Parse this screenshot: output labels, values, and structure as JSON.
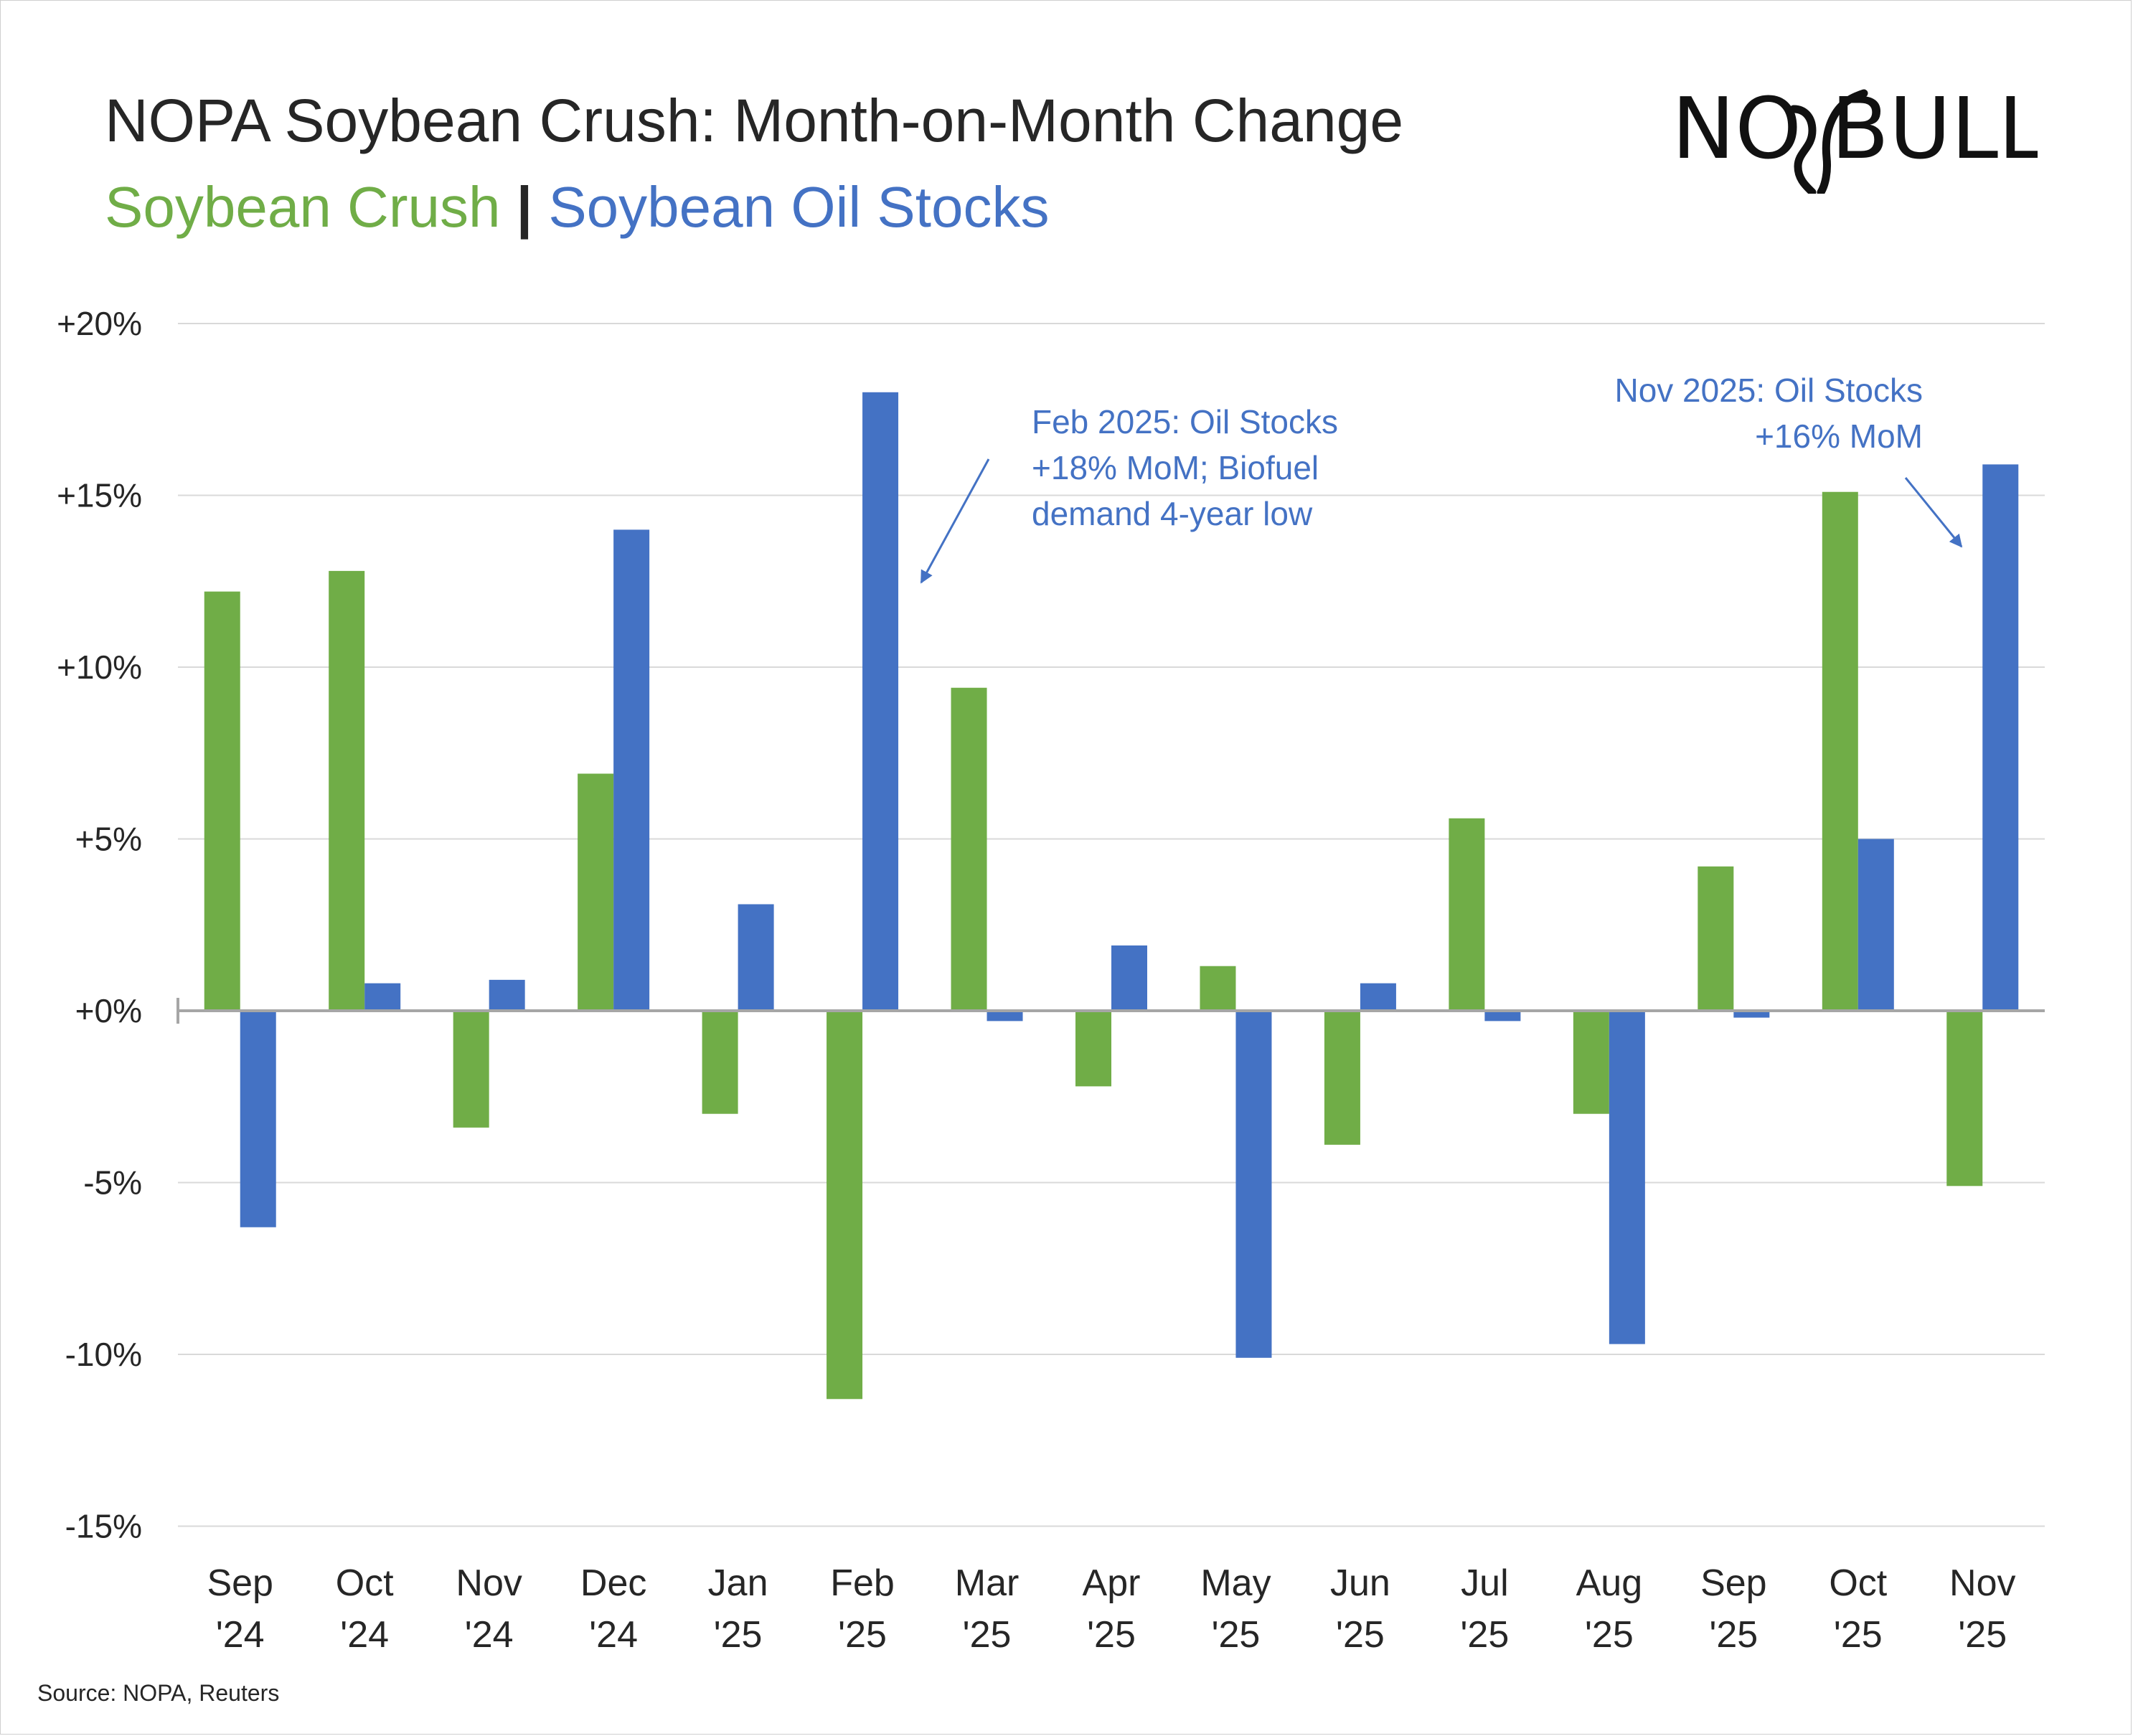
{
  "title": "NOPA Soybean Crush: Month-on-Month Change",
  "subtitle": {
    "crush": "Soybean Crush",
    "separator": "|",
    "oil": "Soybean Oil Stocks"
  },
  "logo": {
    "left": "NO",
    "right": "BULL"
  },
  "source": "Source: NOPA, Reuters",
  "colors": {
    "crush": "#70ad47",
    "oil": "#4472c4",
    "grid": "#d9d9d9",
    "axis": "#a6a6a6",
    "text": "#262626"
  },
  "chart_data": {
    "type": "bar",
    "title": "NOPA Soybean Crush: Month-on-Month Change",
    "xlabel": "",
    "ylabel": "",
    "ylim": [
      -15,
      20
    ],
    "yticks": [
      20,
      15,
      10,
      5,
      0,
      -5,
      -10,
      -15
    ],
    "ytick_labels": [
      "+20%",
      "+15%",
      "+10%",
      "+5%",
      "+0%",
      "-5%",
      "-10%",
      "-15%"
    ],
    "grid": true,
    "categories": [
      [
        "Sep",
        "'24"
      ],
      [
        "Oct",
        "'24"
      ],
      [
        "Nov",
        "'24"
      ],
      [
        "Dec",
        "'24"
      ],
      [
        "Jan",
        "'25"
      ],
      [
        "Feb",
        "'25"
      ],
      [
        "Mar",
        "'25"
      ],
      [
        "Apr",
        "'25"
      ],
      [
        "May",
        "'25"
      ],
      [
        "Jun",
        "'25"
      ],
      [
        "Jul",
        "'25"
      ],
      [
        "Aug",
        "'25"
      ],
      [
        "Sep",
        "'25"
      ],
      [
        "Oct",
        "'25"
      ],
      [
        "Nov",
        "'25"
      ]
    ],
    "series": [
      {
        "name": "Soybean Crush",
        "color": "#70ad47",
        "values": [
          12.2,
          12.8,
          -3.4,
          6.9,
          -3.0,
          -11.3,
          9.4,
          -2.2,
          1.3,
          -3.9,
          5.6,
          -3.0,
          4.2,
          15.1,
          -5.1
        ]
      },
      {
        "name": "Soybean Oil Stocks",
        "color": "#4472c4",
        "values": [
          -6.3,
          0.8,
          0.9,
          14.0,
          3.1,
          18.0,
          -0.3,
          1.9,
          -10.1,
          0.8,
          -0.3,
          -9.7,
          -0.2,
          5.0,
          15.9
        ]
      }
    ],
    "annotations": [
      {
        "lines": [
          "Feb 2025: Oil Stocks",
          "+18% MoM; Biofuel",
          "demand 4-year low"
        ],
        "category": 5
      },
      {
        "lines": [
          "Nov 2025: Oil Stocks",
          "+16% MoM"
        ],
        "category": 14
      }
    ]
  }
}
